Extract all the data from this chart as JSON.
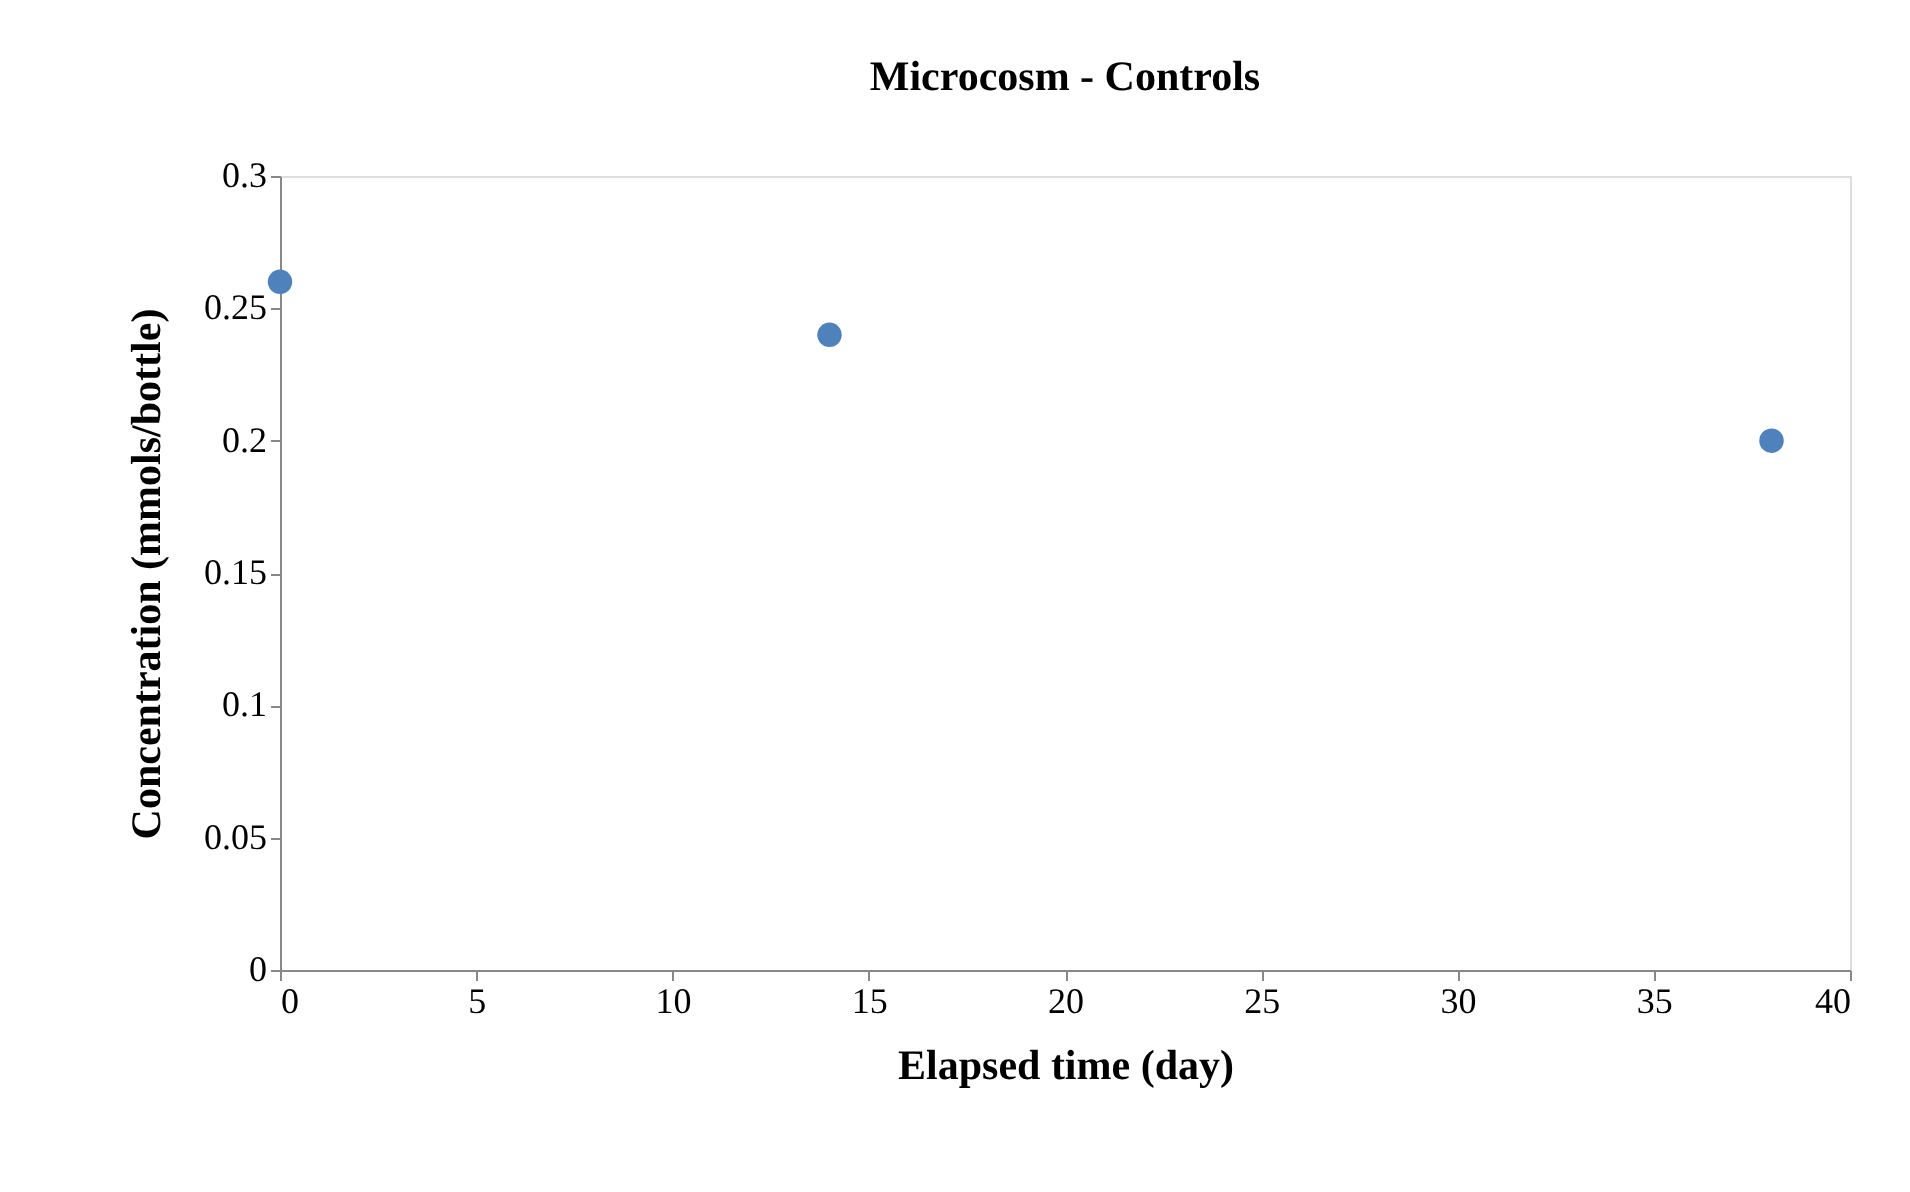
{
  "chart_data": {
    "type": "scatter",
    "title": "Microcosm - Controls",
    "xlabel": "Elapsed time (day)",
    "ylabel": "Concentration (mmols/bottle)",
    "x": [
      0,
      14,
      38
    ],
    "series": [
      {
        "color": "#4f81bd",
        "values": [
          0.26,
          0.24,
          0.2
        ]
      }
    ],
    "xlim": [
      0,
      40
    ],
    "xticks": [
      0,
      5,
      10,
      15,
      20,
      25,
      30,
      35,
      40
    ],
    "ylim": [
      0,
      0.3
    ],
    "yticks": [
      0,
      0.05,
      0.1,
      0.15,
      0.2,
      0.25,
      0.3
    ],
    "grid": false,
    "legend": false,
    "marker": "circle"
  }
}
